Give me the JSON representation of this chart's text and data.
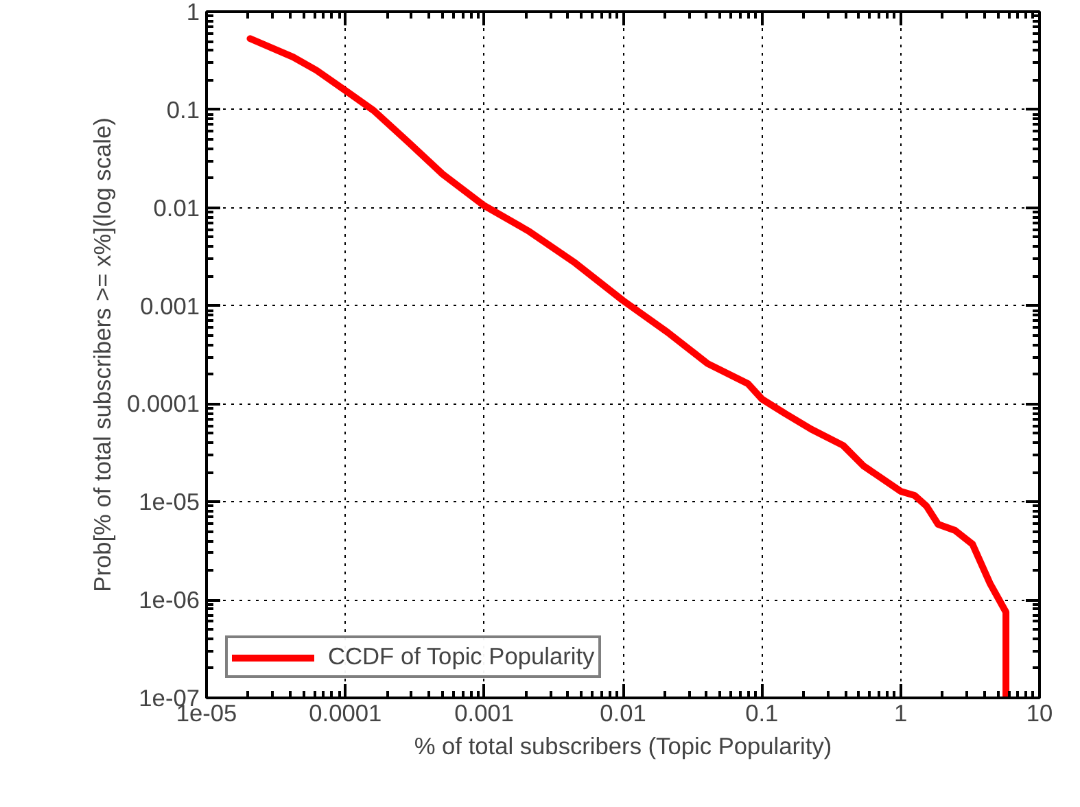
{
  "chart_data": {
    "type": "line",
    "xlabel": "% of total subscribers (Topic Popularity)",
    "ylabel": "Prob[% of total subscribers >= x%](log scale)",
    "log": "xy",
    "grid": true,
    "legend": "bottom left",
    "line_style": "solid",
    "marker": "none",
    "xlim": [
      1e-05,
      10
    ],
    "ylim": [
      1e-07,
      1
    ],
    "xticks": [
      {
        "value": 1e-05,
        "label": "1e-05"
      },
      {
        "value": 0.0001,
        "label": "0.0001"
      },
      {
        "value": 0.001,
        "label": "0.001"
      },
      {
        "value": 0.01,
        "label": "0.01"
      },
      {
        "value": 0.1,
        "label": "0.1"
      },
      {
        "value": 1,
        "label": "1"
      },
      {
        "value": 10,
        "label": "10"
      }
    ],
    "yticks": [
      {
        "value": 1e-07,
        "label": "1e-07"
      },
      {
        "value": 1e-06,
        "label": "1e-06"
      },
      {
        "value": 1e-05,
        "label": "1e-05"
      },
      {
        "value": 0.0001,
        "label": "0.0001"
      },
      {
        "value": 0.001,
        "label": "0.001"
      },
      {
        "value": 0.01,
        "label": "0.01"
      },
      {
        "value": 0.1,
        "label": "0.1"
      },
      {
        "value": 1,
        "label": "1"
      }
    ],
    "series": [
      {
        "name": "CCDF of Topic Popularity",
        "color": "#ff0000",
        "x": [
          2.06e-05,
          4.2e-05,
          6.2e-05,
          0.0001,
          0.00016,
          0.000284,
          0.0005,
          0.001,
          0.00211,
          0.00454,
          0.01,
          0.0209,
          0.0407,
          0.0796,
          0.1,
          0.148,
          0.227,
          0.385,
          0.537,
          1,
          1.26,
          1.53,
          1.86,
          2.47,
          3.29,
          4.39,
          5.73,
          5.73
        ],
        "values": [
          0.531,
          0.344,
          0.252,
          0.157,
          0.098,
          0.0467,
          0.0221,
          0.0105,
          0.00573,
          0.00272,
          0.00113,
          0.000537,
          0.000257,
          0.00016,
          0.000112,
          7.9e-05,
          5.5e-05,
          3.76e-05,
          2.34e-05,
          1.28e-05,
          1.16e-05,
          9.1e-06,
          5.9e-06,
          5.1e-06,
          3.7e-06,
          1.48e-06,
          7.5e-07,
          1e-07
        ]
      }
    ]
  }
}
